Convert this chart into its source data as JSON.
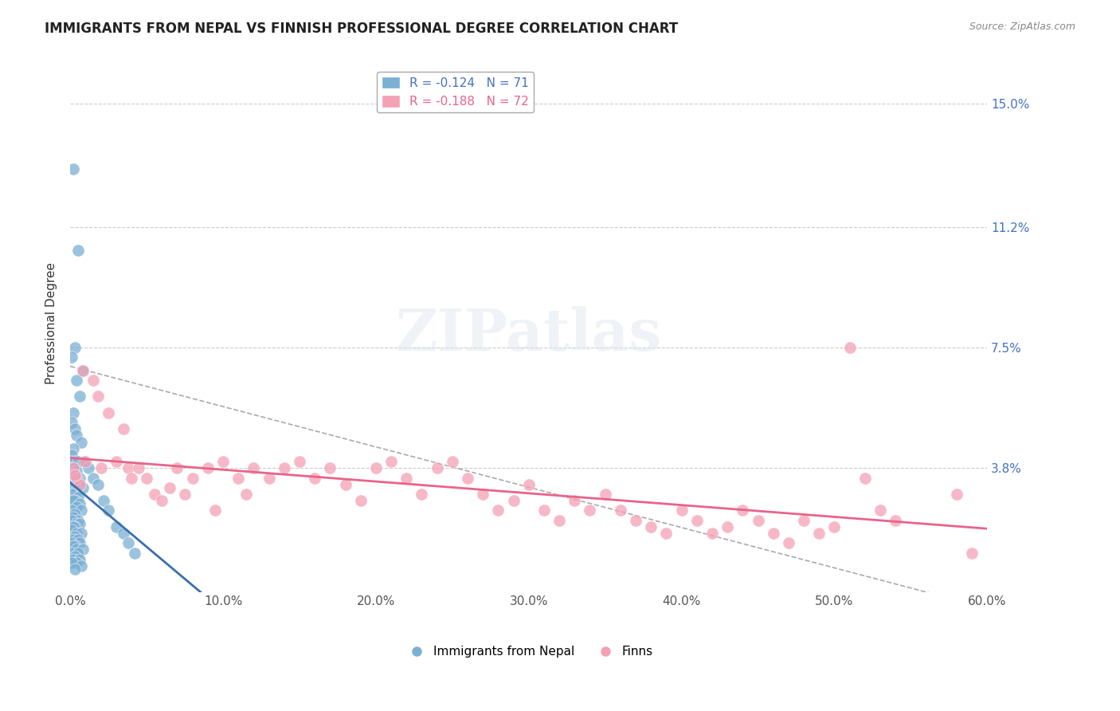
{
  "title": "IMMIGRANTS FROM NEPAL VS FINNISH PROFESSIONAL DEGREE CORRELATION CHART",
  "source": "Source: ZipAtlas.com",
  "ylabel": "Professional Degree",
  "xlabel_ticks": [
    "0.0%",
    "10.0%",
    "20.0%",
    "30.0%",
    "40.0%",
    "50.0%",
    "60.0%"
  ],
  "xlabel_vals": [
    0.0,
    0.1,
    0.2,
    0.3,
    0.4,
    0.5,
    0.6
  ],
  "ytick_labels": [
    "0.0%",
    "3.8%",
    "7.5%",
    "11.2%",
    "15.0%"
  ],
  "ytick_vals": [
    0.0,
    0.038,
    0.075,
    0.112,
    0.15
  ],
  "right_ytick_labels": [
    "15.0%",
    "11.2%",
    "7.5%",
    "3.8%"
  ],
  "right_ytick_vals": [
    0.15,
    0.112,
    0.075,
    0.038
  ],
  "xlim": [
    0.0,
    0.6
  ],
  "ylim": [
    0.0,
    0.165
  ],
  "nepal_R": -0.124,
  "nepal_N": 71,
  "finn_R": -0.188,
  "finn_N": 72,
  "nepal_color": "#7bafd4",
  "finn_color": "#f4a0b5",
  "nepal_line_color": "#3a6fad",
  "finn_line_color": "#e8648a",
  "dashed_line_color": "#aaaaaa",
  "watermark": "ZIPatlas",
  "legend_label_nepal": "Immigrants from Nepal",
  "legend_label_finn": "Finns",
  "nepal_scatter_x": [
    0.002,
    0.005,
    0.003,
    0.001,
    0.008,
    0.004,
    0.006,
    0.002,
    0.001,
    0.003,
    0.004,
    0.007,
    0.002,
    0.001,
    0.003,
    0.005,
    0.002,
    0.004,
    0.001,
    0.006,
    0.003,
    0.002,
    0.008,
    0.004,
    0.001,
    0.005,
    0.003,
    0.002,
    0.006,
    0.004,
    0.001,
    0.007,
    0.003,
    0.002,
    0.005,
    0.001,
    0.004,
    0.006,
    0.003,
    0.002,
    0.001,
    0.004,
    0.007,
    0.003,
    0.002,
    0.005,
    0.001,
    0.006,
    0.003,
    0.002,
    0.004,
    0.008,
    0.001,
    0.005,
    0.003,
    0.002,
    0.006,
    0.004,
    0.001,
    0.007,
    0.003,
    0.009,
    0.012,
    0.015,
    0.018,
    0.022,
    0.025,
    0.03,
    0.035,
    0.038,
    0.042
  ],
  "nepal_scatter_y": [
    0.13,
    0.105,
    0.075,
    0.072,
    0.068,
    0.065,
    0.06,
    0.055,
    0.052,
    0.05,
    0.048,
    0.046,
    0.044,
    0.042,
    0.04,
    0.04,
    0.038,
    0.037,
    0.036,
    0.035,
    0.034,
    0.033,
    0.032,
    0.031,
    0.03,
    0.029,
    0.028,
    0.028,
    0.027,
    0.026,
    0.025,
    0.025,
    0.024,
    0.023,
    0.022,
    0.022,
    0.021,
    0.021,
    0.02,
    0.02,
    0.019,
    0.018,
    0.018,
    0.017,
    0.016,
    0.016,
    0.015,
    0.015,
    0.014,
    0.014,
    0.013,
    0.013,
    0.012,
    0.012,
    0.011,
    0.01,
    0.01,
    0.009,
    0.009,
    0.008,
    0.007,
    0.04,
    0.038,
    0.035,
    0.033,
    0.028,
    0.025,
    0.02,
    0.018,
    0.015,
    0.012
  ],
  "finn_scatter_x": [
    0.002,
    0.004,
    0.006,
    0.003,
    0.008,
    0.01,
    0.015,
    0.018,
    0.02,
    0.025,
    0.03,
    0.035,
    0.038,
    0.04,
    0.045,
    0.05,
    0.055,
    0.06,
    0.065,
    0.07,
    0.075,
    0.08,
    0.09,
    0.095,
    0.1,
    0.11,
    0.115,
    0.12,
    0.13,
    0.14,
    0.15,
    0.16,
    0.17,
    0.18,
    0.19,
    0.2,
    0.21,
    0.22,
    0.23,
    0.24,
    0.25,
    0.26,
    0.27,
    0.28,
    0.29,
    0.3,
    0.31,
    0.32,
    0.33,
    0.34,
    0.35,
    0.36,
    0.37,
    0.38,
    0.39,
    0.4,
    0.41,
    0.42,
    0.43,
    0.44,
    0.45,
    0.46,
    0.47,
    0.48,
    0.49,
    0.5,
    0.51,
    0.52,
    0.53,
    0.54,
    0.58,
    0.59
  ],
  "finn_scatter_y": [
    0.038,
    0.035,
    0.033,
    0.036,
    0.068,
    0.04,
    0.065,
    0.06,
    0.038,
    0.055,
    0.04,
    0.05,
    0.038,
    0.035,
    0.038,
    0.035,
    0.03,
    0.028,
    0.032,
    0.038,
    0.03,
    0.035,
    0.038,
    0.025,
    0.04,
    0.035,
    0.03,
    0.038,
    0.035,
    0.038,
    0.04,
    0.035,
    0.038,
    0.033,
    0.028,
    0.038,
    0.04,
    0.035,
    0.03,
    0.038,
    0.04,
    0.035,
    0.03,
    0.025,
    0.028,
    0.033,
    0.025,
    0.022,
    0.028,
    0.025,
    0.03,
    0.025,
    0.022,
    0.02,
    0.018,
    0.025,
    0.022,
    0.018,
    0.02,
    0.025,
    0.022,
    0.018,
    0.015,
    0.022,
    0.018,
    0.02,
    0.075,
    0.035,
    0.025,
    0.022,
    0.03,
    0.012
  ]
}
